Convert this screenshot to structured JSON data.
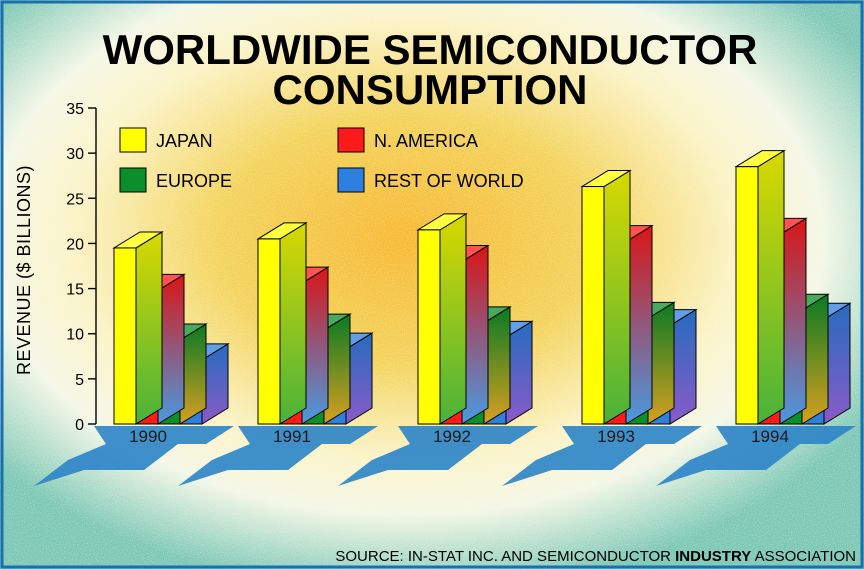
{
  "chart_data": {
    "type": "bar",
    "title": [
      "WORLDWIDE SEMICONDUCTOR",
      "CONSUMPTION"
    ],
    "ylabel": "REVENUE ($ BILLIONS)",
    "xlabel": "",
    "ylim": [
      0,
      35
    ],
    "yticks": [
      0,
      5,
      10,
      15,
      20,
      25,
      30,
      35
    ],
    "categories": [
      "1990",
      "1991",
      "1992",
      "1993",
      "1994"
    ],
    "series": [
      {
        "name": "JAPAN",
        "color": "#ffff00",
        "values": [
          19.5,
          20.5,
          21.5,
          26.3,
          28.5
        ]
      },
      {
        "name": "N. AMERICA",
        "color": "#ff1a1a",
        "values": [
          14.8,
          15.6,
          18.0,
          20.2,
          21.0
        ]
      },
      {
        "name": "EUROPE",
        "color": "#0a8f2a",
        "values": [
          9.3,
          10.4,
          11.2,
          11.7,
          12.6
        ]
      },
      {
        "name": "REST OF WORLD",
        "color": "#2d7fe0",
        "values": [
          7.1,
          8.3,
          9.6,
          10.9,
          11.6
        ]
      }
    ],
    "grid": false,
    "legend_position": "top-left",
    "source": {
      "prefix": "SOURCE: IN-STAT INC. AND SEMICONDUCTOR ",
      "bold": "INDUSTRY",
      "suffix": " ASSOCIATION"
    }
  },
  "colors": {
    "border": "#1a6fb0",
    "background_outer": "#7cc7b4",
    "background_glow": "#f2c34a",
    "shadow": "#2f86c8"
  }
}
